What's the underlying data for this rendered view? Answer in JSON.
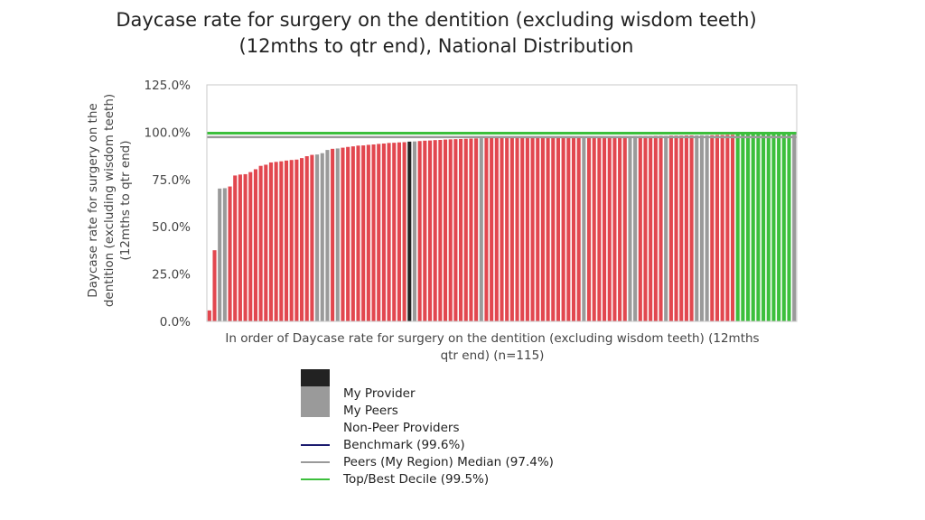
{
  "chart_data": {
    "type": "bar",
    "title_lines": [
      "Daycase rate for surgery on the dentition (excluding wisdom teeth)",
      "(12mths to qtr end), National Distribution"
    ],
    "ylabel_lines": [
      "Daycase rate for surgery on the",
      "dentition (excluding wisdom teeth)",
      "(12mths to qtr end)"
    ],
    "xlabel_lines": [
      "In order of Daycase rate for surgery on the dentition (excluding wisdom teeth) (12mths",
      "qtr end) (n=115)"
    ],
    "ylim": [
      0,
      125
    ],
    "yticks": [
      0,
      25,
      50,
      75,
      100,
      125
    ],
    "ytick_labels": [
      "0.0%",
      "25.0%",
      "50.0%",
      "75.0%",
      "100.0%",
      "125.0%"
    ],
    "grid": false,
    "legend_position": "bottom",
    "colors": {
      "my_provider": "#222222",
      "my_peers": "#9a9a9a",
      "non_peer": "#e2474f",
      "benchmark": "#1a1a6e",
      "peers_median": "#9a9a9a",
      "top_decile": "#3cbf3c"
    },
    "groups": [
      "non_peer",
      "non_peer",
      "peer",
      "peer",
      "non_peer",
      "non_peer",
      "non_peer",
      "non_peer",
      "non_peer",
      "non_peer",
      "non_peer",
      "non_peer",
      "non_peer",
      "non_peer",
      "non_peer",
      "non_peer",
      "non_peer",
      "non_peer",
      "non_peer",
      "non_peer",
      "non_peer",
      "peer",
      "peer",
      "peer",
      "non_peer",
      "peer",
      "non_peer",
      "non_peer",
      "non_peer",
      "non_peer",
      "non_peer",
      "non_peer",
      "non_peer",
      "non_peer",
      "non_peer",
      "non_peer",
      "non_peer",
      "non_peer",
      "non_peer",
      "my_provider",
      "peer",
      "non_peer",
      "non_peer",
      "non_peer",
      "non_peer",
      "non_peer",
      "non_peer",
      "non_peer",
      "non_peer",
      "non_peer",
      "non_peer",
      "non_peer",
      "non_peer",
      "peer",
      "non_peer",
      "non_peer",
      "non_peer",
      "non_peer",
      "non_peer",
      "non_peer",
      "non_peer",
      "non_peer",
      "non_peer",
      "non_peer",
      "non_peer",
      "non_peer",
      "non_peer",
      "non_peer",
      "non_peer",
      "non_peer",
      "non_peer",
      "non_peer",
      "non_peer",
      "peer",
      "non_peer",
      "non_peer",
      "non_peer",
      "non_peer",
      "non_peer",
      "non_peer",
      "non_peer",
      "non_peer",
      "peer",
      "peer",
      "non_peer",
      "non_peer",
      "non_peer",
      "non_peer",
      "non_peer",
      "peer",
      "non_peer",
      "non_peer",
      "non_peer",
      "non_peer",
      "non_peer",
      "peer",
      "peer",
      "peer",
      "non_peer",
      "non_peer",
      "non_peer",
      "non_peer",
      "non_peer",
      "top_decile",
      "top_decile",
      "top_decile",
      "top_decile",
      "top_decile",
      "top_decile",
      "top_decile",
      "top_decile",
      "top_decile",
      "top_decile",
      "top_decile",
      "peer"
    ],
    "values": [
      5.8,
      37.6,
      70.2,
      70.4,
      71.3,
      77.1,
      77.6,
      77.8,
      78.9,
      80.4,
      82.2,
      82.8,
      84.0,
      84.3,
      84.6,
      85.0,
      85.3,
      85.5,
      86.3,
      87.3,
      88.0,
      88.2,
      88.9,
      90.6,
      91.2,
      91.4,
      91.8,
      92.2,
      92.5,
      92.9,
      93.0,
      93.3,
      93.5,
      93.8,
      94.0,
      94.3,
      94.4,
      94.6,
      94.7,
      95.0,
      95.1,
      95.3,
      95.5,
      95.6,
      95.8,
      95.9,
      96.1,
      96.2,
      96.3,
      96.4,
      96.5,
      96.6,
      96.7,
      96.8,
      96.9,
      96.9,
      97.0,
      97.0,
      97.1,
      97.1,
      97.2,
      97.2,
      97.3,
      97.3,
      97.3,
      97.4,
      97.4,
      97.4,
      97.5,
      97.5,
      97.5,
      97.6,
      97.6,
      97.6,
      97.7,
      97.7,
      97.7,
      97.8,
      97.8,
      97.8,
      97.9,
      97.9,
      97.9,
      98.0,
      98.0,
      98.0,
      98.0,
      98.1,
      98.1,
      98.1,
      98.2,
      98.2,
      98.2,
      98.3,
      98.3,
      98.3,
      98.4,
      98.4,
      98.4,
      98.5,
      98.5,
      98.6,
      98.6,
      99.5,
      99.6,
      99.6,
      99.7,
      99.7,
      99.8,
      99.8,
      99.9,
      99.9,
      100.0,
      100.0,
      100.0
    ],
    "reference_lines": [
      {
        "key": "benchmark",
        "value": 99.6
      },
      {
        "key": "peers_median",
        "value": 97.4
      },
      {
        "key": "top_decile",
        "value": 99.5
      }
    ]
  },
  "legend": {
    "my_provider": "My Provider",
    "my_peers": "My Peers",
    "non_peer": "Non-Peer Providers",
    "benchmark": "Benchmark (99.6%)",
    "peers_median": "Peers (My Region) Median (97.4%)",
    "top_decile": "Top/Best Decile (99.5%)"
  }
}
